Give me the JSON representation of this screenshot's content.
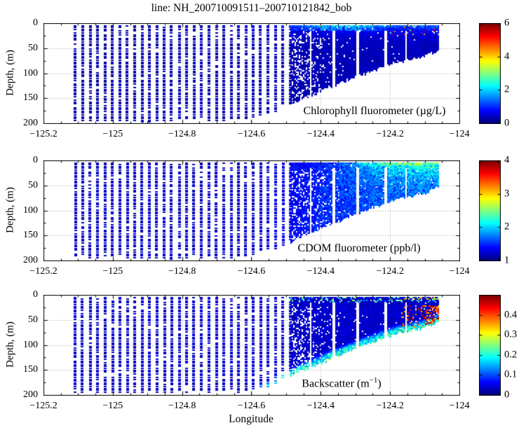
{
  "title": "line: NH_200710091511–200710121842_bob",
  "xlabel": "Longitude",
  "ylabel": "Depth, (m)",
  "axis": {
    "xlim": [
      -125.2,
      -124
    ],
    "ylim": [
      0,
      200
    ],
    "xticks": [
      -125.2,
      -125,
      -124.8,
      -124.6,
      -124.4,
      -124.2,
      -124
    ],
    "xtick_labels": [
      "−125.2",
      "−125",
      "−124.8",
      "−124.6",
      "−124.4",
      "−124.2",
      "−124"
    ],
    "yticks": [
      0,
      50,
      100,
      150,
      200
    ],
    "ytick_labels": [
      "0",
      "50",
      "100",
      "150",
      "200"
    ],
    "minor_x_step": 0.05,
    "minor_y_step": 25,
    "grid_x": [
      -125,
      -124.8,
      -124.6,
      -124.4,
      -124.2
    ],
    "grid_y": [
      50,
      100,
      150
    ]
  },
  "panels": [
    {
      "label": "Chlorophyll fluorometer (µg/L)",
      "clim": [
        0,
        6
      ],
      "cticks": [
        0,
        2,
        4,
        6
      ],
      "ctick_labels": [
        "0",
        "2",
        "4",
        "6"
      ],
      "field": "chl"
    },
    {
      "label": "CDOM fluorometer (ppb/l)",
      "clim": [
        1,
        4
      ],
      "cticks": [
        1,
        2,
        3,
        4
      ],
      "ctick_labels": [
        "1",
        "2",
        "3",
        "4"
      ],
      "field": "cdom"
    },
    {
      "label": "Backscatter (m⁻¹)",
      "label_pre": "Backscatter (m",
      "label_sup": "−1",
      "label_post": ")",
      "clim": [
        0,
        0.5
      ],
      "cticks": [
        0,
        0.1,
        0.2,
        0.3,
        0.4
      ],
      "ctick_labels": [
        "0",
        "0.1",
        "0.2",
        "0.3",
        "0.4"
      ],
      "field": "bsc"
    }
  ],
  "chart_data": {
    "type": "scatter",
    "description": "Three stacked depth-vs-longitude ocean transect sections (glider/profiler casts), jet colormap, dotted grid, colorbar at right of each panel.",
    "colormap": "jet",
    "grid": "dotted",
    "x": {
      "label": "Longitude",
      "range": [
        -125.2,
        -124
      ],
      "ticks": [
        -125.2,
        -125,
        -124.8,
        -124.6,
        -124.4,
        -124.2,
        -124
      ]
    },
    "y": {
      "label": "Depth, (m)",
      "range": [
        0,
        200
      ],
      "ticks": [
        0,
        50,
        100,
        150,
        200
      ],
      "inverted": true
    },
    "data_extent": {
      "lon_min": -125.108,
      "lon_max": -124.058,
      "depth_min": 4,
      "depth_max": 197
    },
    "cast_structure": {
      "discrete_profile_region": [
        -125.108,
        -124.487
      ],
      "profile_spacing_deg": 0.0214,
      "dense_region": [
        -124.487,
        -124.058
      ]
    },
    "seafloor_profile": [
      [
        -125.11,
        197
      ],
      [
        -124.62,
        196
      ],
      [
        -124.54,
        182
      ],
      [
        -124.46,
        152
      ],
      [
        -124.38,
        128
      ],
      [
        -124.3,
        106
      ],
      [
        -124.23,
        88
      ],
      [
        -124.18,
        76
      ],
      [
        -124.14,
        70
      ],
      [
        -124.11,
        66
      ],
      [
        -124.08,
        58
      ],
      [
        -124.055,
        50
      ]
    ],
    "panels": [
      {
        "title": "Chlorophyll fluorometer (µg/L)",
        "clim": [
          0,
          6
        ],
        "colorbar_ticks": [
          0,
          2,
          4,
          6
        ],
        "background_value": 0.3,
        "surface_enhancement": "1–2.5 µg/L in upper 15 m east of −124.7, cyan patches near −124.45",
        "hotspots": "3–6 µg/L speckles near −124.12 in upper 25 m"
      },
      {
        "title": "CDOM fluorometer (ppb/l)",
        "clim": [
          1,
          4
        ],
        "colorbar_ticks": [
          1,
          2,
          3,
          4
        ],
        "background_value": 1.2,
        "surface_enhancement": "1.6–2.4 ppb/l in upper 30 m east of −124.4, cyan along surface near coast"
      },
      {
        "title": "Backscatter (m⁻¹)",
        "clim": [
          0,
          0.5
        ],
        "colorbar_ticks": [
          0,
          0.1,
          0.2,
          0.3,
          0.4
        ],
        "background_value": 0.04,
        "bottom_layer": "0.15–0.3 cyan-green layer along seafloor east of −124.6",
        "hotspots": "0.35–0.5 orange/dark-red patches near −124.11 at 20–60 m"
      }
    ]
  }
}
